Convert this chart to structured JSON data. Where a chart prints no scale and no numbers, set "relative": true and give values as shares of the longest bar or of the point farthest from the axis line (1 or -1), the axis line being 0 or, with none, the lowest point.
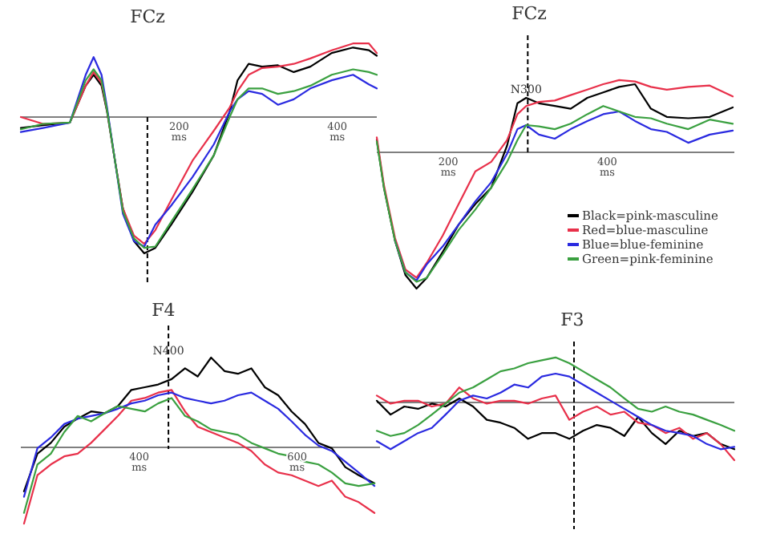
{
  "chart_data": [
    {
      "type": "line",
      "title": "FCz",
      "relative": true,
      "tick_labels": "x",
      "xlim": [
        0,
        450
      ],
      "xticks": [
        {
          "value": 200,
          "label": "200 ms"
        },
        {
          "value": 400,
          "label": "400 ms"
        }
      ],
      "x": [
        0,
        28,
        62,
        82,
        92,
        102,
        109,
        119,
        129,
        143,
        156,
        170,
        190,
        217,
        244,
        264,
        274,
        288,
        305,
        325,
        345,
        366,
        393,
        420,
        440,
        450
      ],
      "ref_lines": [
        {
          "axis": "x",
          "value": 160,
          "line_style": "dashed"
        }
      ],
      "series": [
        {
          "color": "#000000",
          "values": [
            -0.08,
            -0.06,
            -0.04,
            0.23,
            0.31,
            0.23,
            0.04,
            -0.32,
            -0.67,
            -0.91,
            -1.0,
            -0.96,
            -0.79,
            -0.55,
            -0.28,
            0.04,
            0.27,
            0.39,
            0.37,
            0.38,
            0.33,
            0.37,
            0.47,
            0.51,
            0.49,
            0.45
          ]
        },
        {
          "color": "#e8304a",
          "values": [
            0,
            -0.05,
            -0.04,
            0.23,
            0.33,
            0.25,
            0.05,
            -0.32,
            -0.67,
            -0.87,
            -0.93,
            -0.83,
            -0.61,
            -0.32,
            -0.1,
            0.07,
            0.19,
            0.31,
            0.36,
            0.37,
            0.39,
            0.43,
            0.49,
            0.54,
            0.54,
            0.47
          ]
        },
        {
          "color": "#2a2ae0",
          "values": [
            -0.11,
            -0.08,
            -0.04,
            0.31,
            0.44,
            0.31,
            0.07,
            -0.32,
            -0.71,
            -0.91,
            -0.95,
            -0.79,
            -0.65,
            -0.44,
            -0.2,
            0.04,
            0.13,
            0.19,
            0.17,
            0.09,
            0.13,
            0.21,
            0.27,
            0.31,
            0.24,
            0.21
          ]
        },
        {
          "color": "#3aa040",
          "values": [
            -0.09,
            -0.05,
            -0.04,
            0.27,
            0.35,
            0.27,
            0.05,
            -0.32,
            -0.69,
            -0.89,
            -0.96,
            -0.95,
            -0.77,
            -0.53,
            -0.28,
            0,
            0.13,
            0.21,
            0.21,
            0.17,
            0.19,
            0.23,
            0.31,
            0.35,
            0.33,
            0.31
          ]
        }
      ]
    },
    {
      "type": "line",
      "title": "FCz",
      "relative": true,
      "tick_labels": "x",
      "xlim": [
        110,
        560
      ],
      "xticks": [
        {
          "value": 200,
          "label": "200 ms"
        },
        {
          "value": 400,
          "label": "400 ms"
        }
      ],
      "legend": "bottom right",
      "x": [
        110,
        119,
        133,
        146,
        160,
        173,
        193,
        213,
        234,
        254,
        274,
        287,
        298,
        314,
        334,
        354,
        375,
        395,
        415,
        435,
        455,
        475,
        502,
        529,
        558
      ],
      "ref_lines": [
        {
          "axis": "x",
          "value": 300,
          "line_style": "dashed"
        }
      ],
      "annotations": [
        {
          "text": "N300",
          "x": 298,
          "y": 0.4
        }
      ],
      "series": [
        {
          "name": "Black=pink-masculine",
          "color": "#000000",
          "values": [
            0.09,
            -0.26,
            -0.65,
            -0.9,
            -1.0,
            -0.92,
            -0.73,
            -0.53,
            -0.38,
            -0.26,
            0.05,
            0.36,
            0.4,
            0.36,
            0.34,
            0.32,
            0.4,
            0.44,
            0.48,
            0.5,
            0.32,
            0.26,
            0.25,
            0.26,
            0.33
          ]
        },
        {
          "name": "Red=blue-masculine",
          "color": "#e8304a",
          "values": [
            0.11,
            -0.24,
            -0.63,
            -0.86,
            -0.92,
            -0.81,
            -0.61,
            -0.38,
            -0.14,
            -0.07,
            0.09,
            0.28,
            0.34,
            0.37,
            0.38,
            0.42,
            0.46,
            0.5,
            0.53,
            0.52,
            0.48,
            0.46,
            0.48,
            0.49,
            0.41
          ]
        },
        {
          "name": "Blue=blue-feminine",
          "color": "#2a2ae0",
          "values": [
            null,
            null,
            -0.65,
            -0.88,
            -0.94,
            -0.82,
            -0.69,
            -0.53,
            -0.36,
            -0.22,
            -0.01,
            0.17,
            0.2,
            0.13,
            0.1,
            0.17,
            0.23,
            0.28,
            0.3,
            0.23,
            0.17,
            0.15,
            0.07,
            0.13,
            0.16
          ]
        },
        {
          "name": "Green=pink-feminine",
          "color": "#3aa040",
          "values": [
            0.08,
            -0.26,
            -0.65,
            -0.88,
            -0.95,
            -0.92,
            -0.75,
            -0.57,
            -0.42,
            -0.26,
            -0.07,
            0.09,
            0.2,
            0.19,
            0.17,
            0.21,
            0.28,
            0.34,
            0.3,
            0.26,
            0.25,
            0.21,
            0.17,
            0.24,
            0.21
          ]
        }
      ]
    },
    {
      "type": "line",
      "title": "F4",
      "relative": true,
      "tick_labels": "x",
      "xlim": [
        250,
        705
      ],
      "xticks": [
        {
          "value": 400,
          "label": "400 ms"
        },
        {
          "value": 600,
          "label": "600 ms"
        }
      ],
      "x": [
        254,
        271,
        288,
        305,
        322,
        339,
        356,
        373,
        390,
        407,
        424,
        441,
        458,
        474,
        491,
        508,
        525,
        542,
        559,
        576,
        593,
        610,
        627,
        644,
        661,
        678,
        698
      ],
      "ref_lines": [
        {
          "axis": "x",
          "value": 437,
          "line_style": "dashed"
        }
      ],
      "annotations": [
        {
          "text": "N400",
          "x": 437,
          "y": 0.98
        }
      ],
      "series": [
        {
          "color": "#000000",
          "values": [
            -0.49,
            -0.07,
            0.05,
            0.23,
            0.32,
            0.4,
            0.38,
            0.46,
            0.64,
            0.67,
            0.7,
            0.76,
            0.88,
            0.79,
            1.0,
            0.85,
            0.82,
            0.88,
            0.67,
            0.58,
            0.4,
            0.26,
            0.05,
            -0.01,
            -0.22,
            -0.31,
            -0.4
          ]
        },
        {
          "color": "#e8304a",
          "values": [
            -0.85,
            -0.31,
            -0.19,
            -0.1,
            -0.07,
            0.05,
            0.2,
            0.35,
            0.52,
            0.55,
            0.61,
            0.64,
            0.4,
            0.23,
            0.17,
            0.11,
            0.05,
            -0.04,
            -0.19,
            -0.28,
            -0.31,
            -0.37,
            -0.43,
            -0.37,
            -0.55,
            -0.61,
            -0.73
          ]
        },
        {
          "color": "#2a2ae0",
          "values": [
            -0.55,
            -0.01,
            0.11,
            0.26,
            0.32,
            0.35,
            0.38,
            0.43,
            0.49,
            0.52,
            0.58,
            0.61,
            0.55,
            0.52,
            0.49,
            0.52,
            0.58,
            0.61,
            0.52,
            0.43,
            0.29,
            0.14,
            0.02,
            -0.04,
            -0.16,
            -0.28,
            -0.43
          ]
        },
        {
          "color": "#3aa040",
          "values": [
            -0.73,
            -0.19,
            -0.07,
            0.17,
            0.35,
            0.29,
            0.38,
            0.46,
            0.43,
            0.4,
            0.49,
            0.55,
            0.35,
            0.29,
            0.2,
            0.17,
            0.14,
            0.05,
            -0.01,
            -0.07,
            -0.1,
            -0.16,
            -0.19,
            -0.28,
            -0.4,
            -0.43,
            -0.4
          ]
        }
      ]
    },
    {
      "type": "line",
      "title": "F3",
      "relative": true,
      "tick_labels": false,
      "categories": [
        null,
        null,
        null,
        null,
        null,
        null,
        null,
        null,
        null,
        null,
        null,
        null,
        null,
        null,
        null,
        null,
        null,
        null,
        null,
        null,
        null,
        null,
        null,
        null,
        null,
        null,
        null
      ],
      "series": [
        {
          "color": "#000000",
          "values": [
            0.03,
            -0.21,
            -0.07,
            -0.11,
            -0.02,
            -0.07,
            0.07,
            -0.07,
            -0.3,
            -0.35,
            -0.44,
            -0.63,
            -0.53,
            -0.53,
            -0.63,
            -0.49,
            -0.39,
            -0.44,
            -0.58,
            -0.25,
            -0.53,
            -0.72,
            -0.49,
            -0.58,
            -0.53,
            -0.72,
            -0.81
          ]
        },
        {
          "color": "#e8304a",
          "values": [
            0.12,
            -0.02,
            0.03,
            0.03,
            -0.07,
            -0.02,
            0.26,
            0.07,
            -0.02,
            0.03,
            0.03,
            -0.02,
            0.07,
            0.12,
            -0.3,
            -0.16,
            -0.07,
            -0.21,
            -0.16,
            -0.35,
            -0.39,
            -0.53,
            -0.44,
            -0.63,
            -0.53,
            -0.72,
            -1.0
          ]
        },
        {
          "color": "#2a2ae0",
          "values": [
            -0.67,
            -0.81,
            -0.67,
            -0.53,
            -0.44,
            -0.21,
            0.03,
            0.12,
            0.07,
            0.17,
            0.31,
            0.26,
            0.45,
            0.5,
            0.45,
            0.31,
            0.17,
            0.03,
            -0.11,
            -0.25,
            -0.39,
            -0.49,
            -0.53,
            -0.58,
            -0.72,
            -0.81,
            -0.77
          ]
        },
        {
          "color": "#3aa040",
          "values": [
            -0.49,
            -0.58,
            -0.53,
            -0.39,
            -0.21,
            -0.02,
            0.17,
            0.26,
            0.4,
            0.54,
            0.59,
            0.68,
            0.73,
            0.78,
            0.68,
            0.54,
            0.4,
            0.26,
            0.07,
            -0.11,
            -0.16,
            -0.07,
            -0.16,
            -0.21,
            -0.3,
            -0.39,
            -0.49
          ]
        }
      ]
    }
  ]
}
